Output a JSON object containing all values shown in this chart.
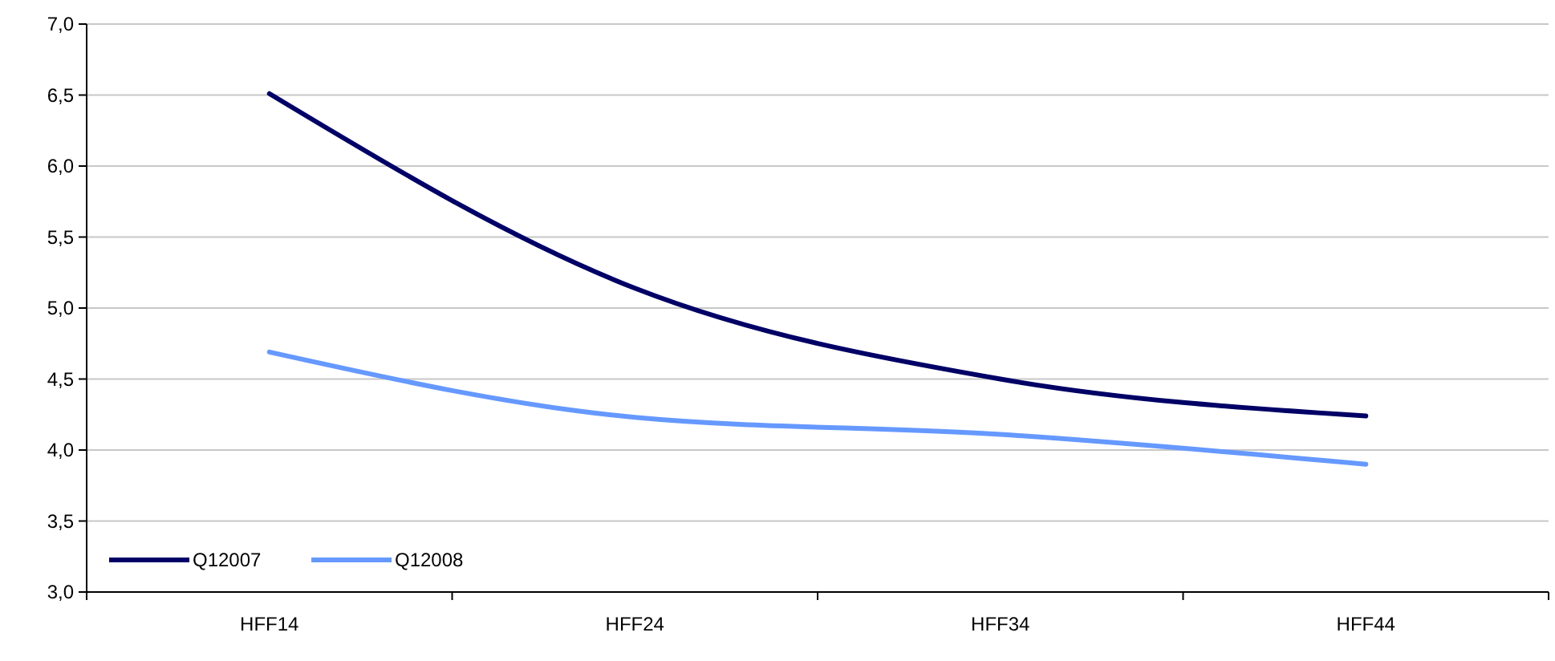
{
  "chart_data": {
    "type": "line",
    "categories": [
      "HFF14",
      "HFF24",
      "HFF34",
      "HFF44"
    ],
    "series": [
      {
        "name": "Q12007",
        "color": "#000066",
        "values": [
          6.51,
          5.14,
          4.5,
          4.24
        ]
      },
      {
        "name": "Q12008",
        "color": "#6699ff",
        "values": [
          4.69,
          4.23,
          4.11,
          3.9
        ]
      }
    ],
    "ylim": [
      3,
      7
    ],
    "yticks": [
      {
        "value": 3,
        "label": "3,0"
      },
      {
        "value": 3.5,
        "label": "3,5"
      },
      {
        "value": 4,
        "label": "4,0"
      },
      {
        "value": 4.5,
        "label": "4,5"
      },
      {
        "value": 5,
        "label": "5,0"
      },
      {
        "value": 5.5,
        "label": "5,5"
      },
      {
        "value": 6,
        "label": "6,0"
      },
      {
        "value": 6.5,
        "label": "6,5"
      },
      {
        "value": 7,
        "label": "7,0"
      }
    ],
    "grid": "y",
    "legend": "bottom left",
    "line_style": "solid",
    "marker": "none"
  }
}
